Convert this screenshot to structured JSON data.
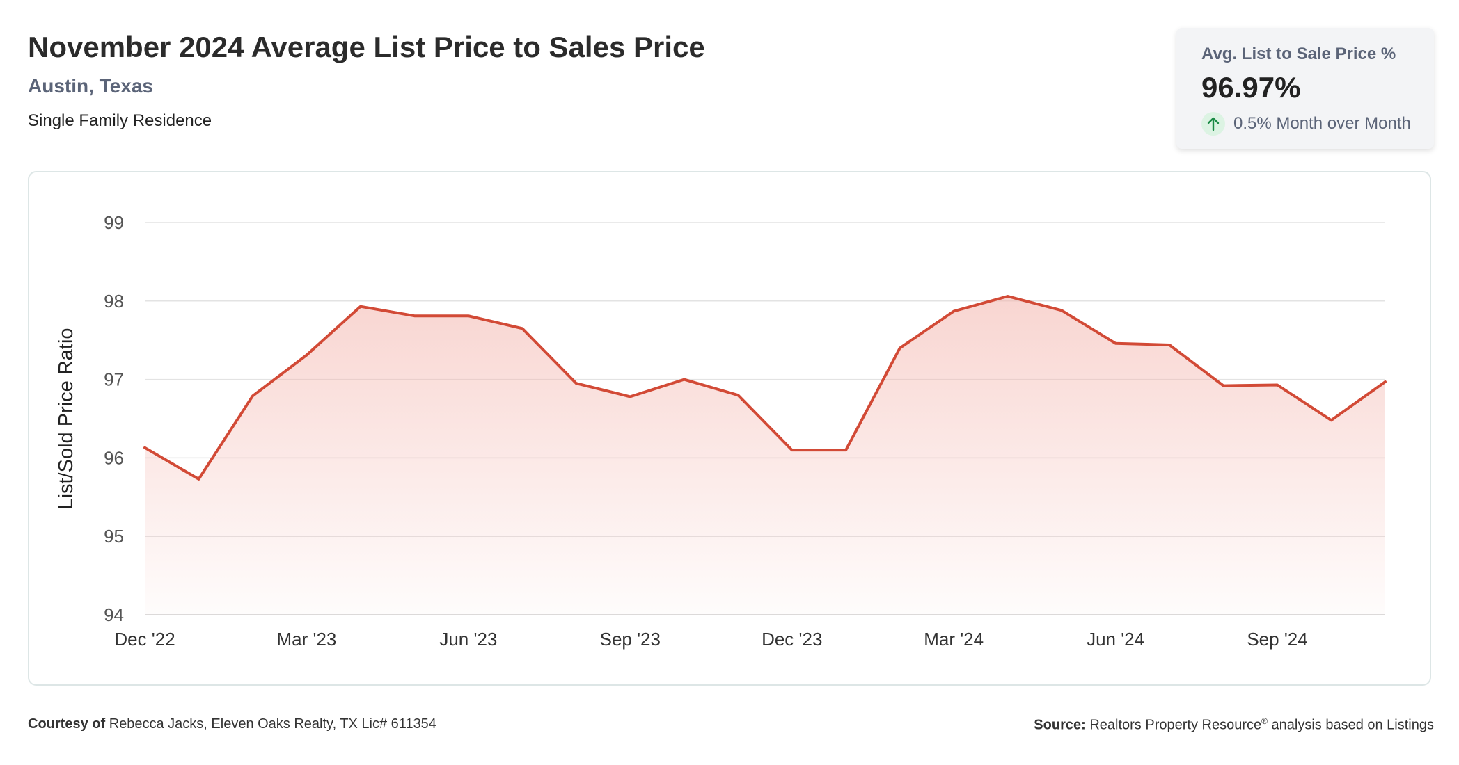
{
  "header": {
    "title": "November 2024 Average List Price to Sales Price",
    "location": "Austin, Texas",
    "property_type": "Single Family Residence"
  },
  "stat_card": {
    "label": "Avg. List to Sale Price %",
    "value": "96.97%",
    "change_text": "0.5% Month over Month",
    "change_icon": "arrow-up-icon",
    "change_color": "#1a8a45"
  },
  "footer": {
    "courtesy_label": "Courtesy of",
    "courtesy_text": "Rebecca Jacks, Eleven Oaks Realty, TX Lic# 611354",
    "source_label": "Source:",
    "source_text_a": "Realtors Property Resource",
    "source_mark": "®",
    "source_text_b": "analysis based on Listings"
  },
  "chart_data": {
    "type": "area",
    "title": "",
    "ylabel": "List/Sold Price Ratio",
    "xlabel": "",
    "ylim": [
      94,
      99
    ],
    "yticks": [
      94,
      95,
      96,
      97,
      98,
      99
    ],
    "xtick_labels": [
      "Dec '22",
      "Mar '23",
      "Jun '23",
      "Sep '23",
      "Dec '23",
      "Mar '24",
      "Jun '24",
      "Sep '24"
    ],
    "xtick_indices": [
      0,
      3,
      6,
      9,
      12,
      15,
      18,
      21
    ],
    "grid": true,
    "line_color": "#d24a36",
    "fill_color": "#f3b3ab",
    "x": [
      "Dec 2022",
      "Jan 2023",
      "Feb 2023",
      "Mar 2023",
      "Apr 2023",
      "May 2023",
      "Jun 2023",
      "Jul 2023",
      "Aug 2023",
      "Sep 2023",
      "Oct 2023",
      "Nov 2023",
      "Dec 2023",
      "Jan 2024",
      "Feb 2024",
      "Mar 2024",
      "Apr 2024",
      "May 2024",
      "Jun 2024",
      "Jul 2024",
      "Aug 2024",
      "Sep 2024",
      "Oct 2024",
      "Nov 2024"
    ],
    "values": [
      96.13,
      95.73,
      96.79,
      97.31,
      97.93,
      97.81,
      97.81,
      97.65,
      96.95,
      96.78,
      97.0,
      96.8,
      96.1,
      96.1,
      97.4,
      97.87,
      98.06,
      97.88,
      97.46,
      97.44,
      96.92,
      96.93,
      96.48,
      96.97
    ]
  }
}
